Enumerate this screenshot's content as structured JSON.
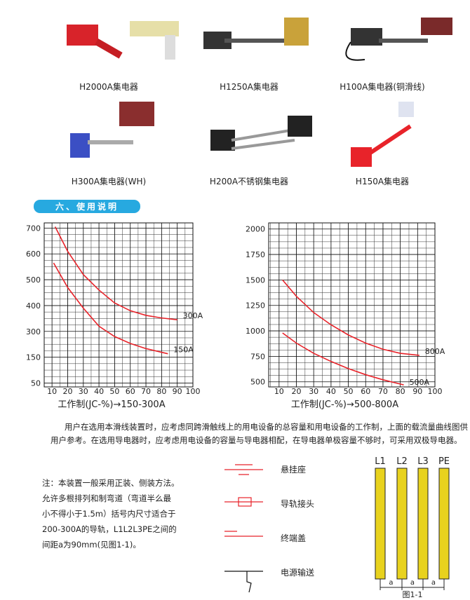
{
  "products": [
    {
      "label": "H2000A集电器"
    },
    {
      "label": "H1250A集电器"
    },
    {
      "label": "H100A集电器(铜滑线)"
    },
    {
      "label": "H300A集电器(WH)"
    },
    {
      "label": "H200A不锈钢集电器"
    },
    {
      "label": "H150A集电器"
    }
  ],
  "section_title": "六、使用说明",
  "chart_data": [
    {
      "type": "line",
      "x_label": "工作制(JC-%)→150-300A",
      "xlim": [
        5,
        100
      ],
      "xticks": [
        10,
        20,
        30,
        40,
        50,
        60,
        70,
        80,
        90,
        100
      ],
      "ylim": [
        35,
        720
      ],
      "yticks": [
        50,
        150,
        300,
        400,
        500,
        600,
        700
      ],
      "grid": true,
      "series": [
        {
          "name": "300A",
          "color": "#e8232a",
          "x": [
            12,
            20,
            30,
            40,
            50,
            60,
            70,
            80,
            90
          ],
          "values": [
            705,
            610,
            520,
            460,
            410,
            380,
            362,
            352,
            345
          ]
        },
        {
          "name": "150A",
          "color": "#e8232a",
          "x": [
            11,
            20,
            30,
            40,
            50,
            60,
            70,
            84
          ],
          "values": [
            565,
            470,
            390,
            320,
            270,
            230,
            200,
            170
          ]
        }
      ]
    },
    {
      "type": "line",
      "x_label": "工作制(JC-%)→500-800A",
      "xlim": [
        4,
        100
      ],
      "xticks": [
        10,
        20,
        30,
        40,
        50,
        60,
        70,
        80,
        90,
        100
      ],
      "ylim": [
        450,
        2060
      ],
      "yticks": [
        500,
        750,
        1000,
        1250,
        1500,
        1750,
        2000
      ],
      "grid": true,
      "series": [
        {
          "name": "800A",
          "color": "#e8232a",
          "x": [
            12,
            20,
            30,
            40,
            50,
            60,
            70,
            80,
            91
          ],
          "values": [
            1500,
            1340,
            1180,
            1060,
            960,
            880,
            820,
            780,
            760
          ]
        },
        {
          "name": "500A",
          "color": "#e8232a",
          "x": [
            12,
            20,
            30,
            40,
            50,
            60,
            70,
            82
          ],
          "values": [
            980,
            880,
            780,
            700,
            630,
            570,
            520,
            470
          ]
        }
      ]
    }
  ],
  "usage_text": [
    "用户在选用本滑线装置时，应考虑同跨滑触线上的用电设备的总容量和用电设备的工作制，上面的载流量曲线图供",
    "用户参考。在选用导电器时，应考虑用电设备的容量与导电器相配，在导电器单极容量不够时，可采用双极导电器。"
  ],
  "note": [
    "注：本装置一般采用正装、侧装方法。",
    "允许多根排列和制弯道（弯道半么最",
    "小不得小于1.5m）括号内尺寸适合于",
    "200-300A的导轨，L1L2L3PE之间的",
    "间距a为90mm(见图1-1)。"
  ],
  "legend": [
    "悬挂座",
    "导轨接头",
    "终端盖",
    "电源输送"
  ],
  "diagram": {
    "bars": [
      "L1",
      "L2",
      "L3",
      "PE"
    ],
    "spacing": [
      "a",
      "a",
      "a"
    ],
    "caption": "图1-1"
  }
}
